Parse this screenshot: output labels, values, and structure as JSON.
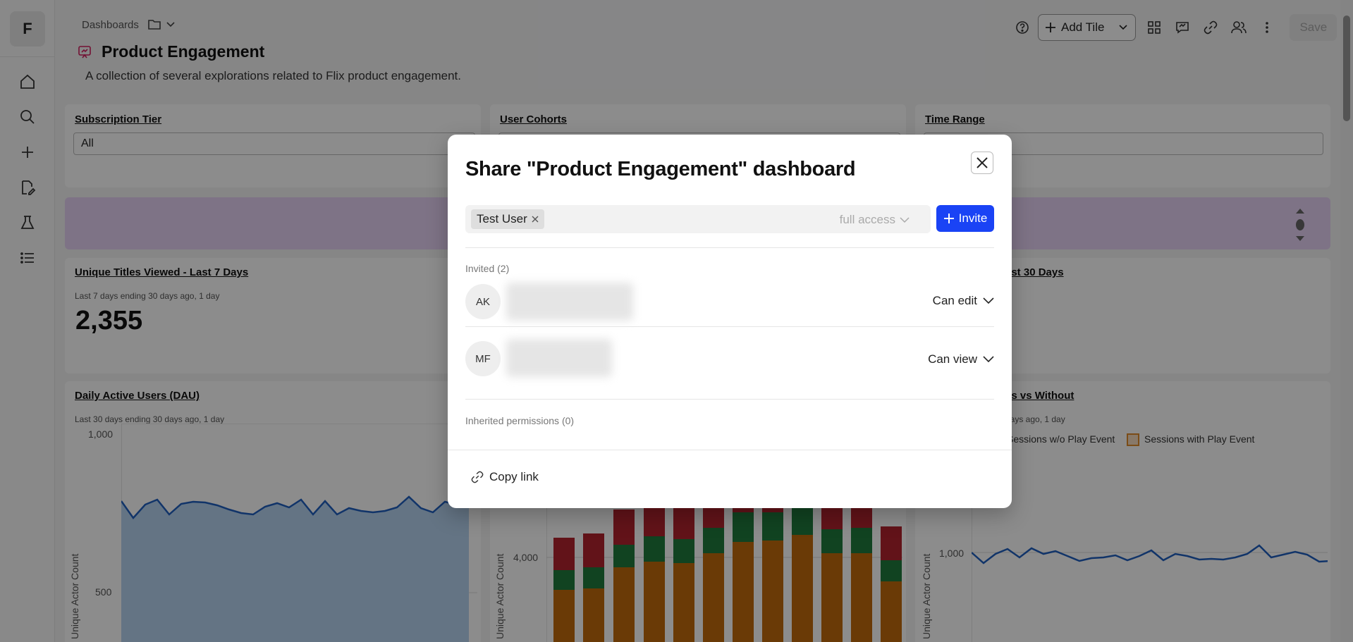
{
  "sidebar": {
    "logo": "F",
    "items": [
      {
        "icon": "home-icon"
      },
      {
        "icon": "search-icon"
      },
      {
        "icon": "plus-icon"
      },
      {
        "icon": "edit-document-icon"
      },
      {
        "icon": "flask-icon"
      },
      {
        "icon": "list-icon"
      }
    ]
  },
  "header": {
    "breadcrumb": "Dashboards",
    "title": "Product Engagement",
    "description": "A collection of several explorations related to Flix product engagement."
  },
  "toolbar": {
    "add_tile_label": "Add Tile",
    "save_label": "Save"
  },
  "filters": [
    {
      "label": "Subscription Tier",
      "value": "All"
    },
    {
      "label": "User Cohorts",
      "value": ""
    },
    {
      "label": "Time Range",
      "value": ""
    }
  ],
  "tiles": {
    "unique_titles": {
      "title": "Unique Titles Viewed - Last 7 Days",
      "subtitle": "Last 7 days ending 30 days ago, 1 day",
      "value": "2,355"
    },
    "right_top": {
      "title": "ast 30 Days"
    },
    "dau": {
      "title": "Daily Active Users (DAU)",
      "subtitle": "Last 30 days ending 30 days ago, 1 day",
      "ylabel": "Unique Actor Count",
      "ticks": [
        "1,000",
        "500"
      ]
    },
    "middle": {
      "ylabel": "Unique Actor Count",
      "ticks": [
        "4,000"
      ]
    },
    "sessions": {
      "title": "ys vs Without",
      "subtitle": "days ago, 1 day",
      "legend": [
        "Sessions w/o Play Event",
        "Sessions with Play Event"
      ],
      "ylabel": "Unique Actor Count",
      "ticks": [
        "1,000"
      ]
    }
  },
  "modal": {
    "title": "Share \"Product Engagement\" dashboard",
    "chip_label": "Test User",
    "access_label": "full access",
    "invite_label": "Invite",
    "invited_label": "Invited (2)",
    "members": [
      {
        "initials": "AK",
        "permission": "Can edit"
      },
      {
        "initials": "MF",
        "permission": "Can view"
      }
    ],
    "inherited_label": "Inherited permissions (0)",
    "copy_link_label": "Copy link"
  },
  "colors": {
    "accent": "#1a43f5",
    "banner": "#e6d2f5",
    "line": "#1f5fbf",
    "bar_orange": "#c26a0c",
    "bar_green": "#1f7a3c",
    "bar_red": "#b3232f"
  }
}
